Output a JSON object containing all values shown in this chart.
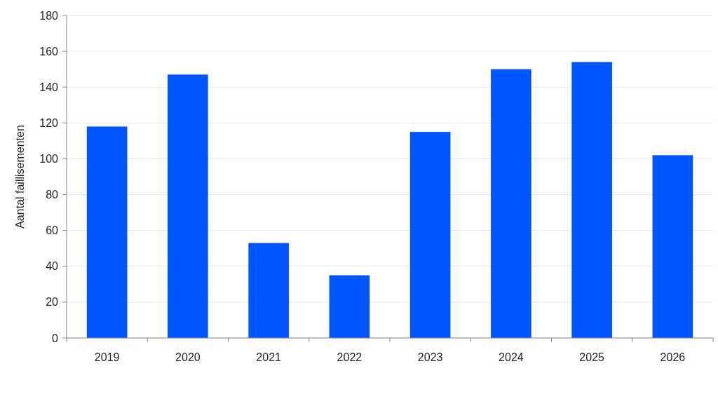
{
  "chart_data": {
    "type": "bar",
    "ylabel": "Aantal faillisementen",
    "categories": [
      "2019",
      "2020",
      "2021",
      "2022",
      "2023",
      "2024",
      "2025",
      "2026"
    ],
    "values": [
      118,
      147,
      53,
      35,
      115,
      150,
      154,
      102
    ],
    "color": "#0055ff",
    "ylim": [
      0,
      180
    ],
    "yticks": [
      0,
      20,
      40,
      60,
      80,
      100,
      120,
      140,
      160,
      180
    ],
    "grid": "y"
  }
}
